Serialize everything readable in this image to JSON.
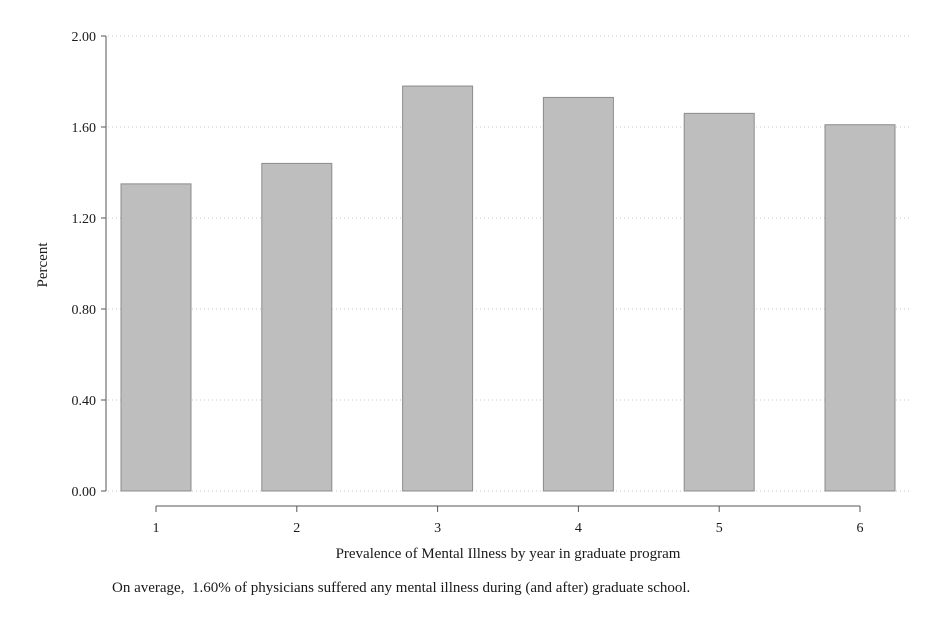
{
  "chart_data": {
    "type": "bar",
    "categories": [
      "1",
      "2",
      "3",
      "4",
      "5",
      "6"
    ],
    "values": [
      1.35,
      1.44,
      1.78,
      1.73,
      1.66,
      1.61
    ],
    "title": "",
    "xlabel": "Prevalence of Mental Illness by year in graduate program",
    "ylabel": "Percent",
    "ylim": [
      0,
      2
    ],
    "yticks": [
      "0.00",
      "0.40",
      "0.80",
      "1.20",
      "1.60",
      "2.00"
    ],
    "grid": "horizontal dotted",
    "note": "On average,  1.60% of physicians suffered any mental illness during (and after) graduate school.",
    "colors": {
      "bar_fill": "#bebebe",
      "bar_stroke": "#8c8c8c",
      "grid": "#c8c8c8",
      "axis": "#555555"
    }
  }
}
